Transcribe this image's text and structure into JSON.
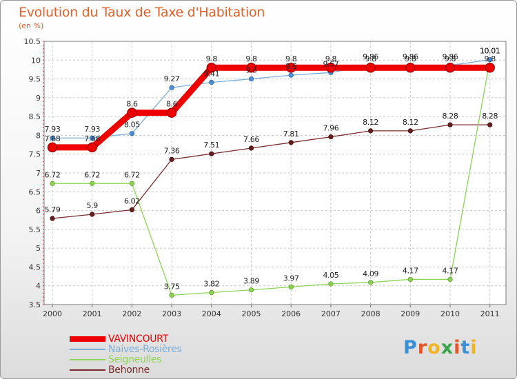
{
  "title": "Evolution du Taux de Taxe d'Habitation",
  "subtitle": "(en %)",
  "logo": {
    "text": "Proxiti",
    "colors": [
      "#3a8fd8",
      "#e2572b",
      "#f0b428",
      "#3aa64a",
      "#e2572b",
      "#3a8fd8",
      "#f0b428"
    ]
  },
  "chart_data": {
    "type": "line",
    "x": [
      "2000",
      "2001",
      "2002",
      "2003",
      "2004",
      "2005",
      "2006",
      "2007",
      "2008",
      "2009",
      "2010",
      "2011"
    ],
    "yticks": [
      "3.5",
      "4",
      "4.5",
      "5",
      "5.5",
      "6",
      "6.5",
      "7",
      "7.5",
      "8",
      "8.5",
      "9",
      "9.5",
      "10",
      "10.5"
    ],
    "ylim": [
      3.5,
      10.5
    ],
    "grid": true,
    "legend_position": "bottom-left",
    "series": [
      {
        "name": "VAVINCOURT",
        "color": "#ee0000",
        "values": [
          7.68,
          7.68,
          8.6,
          8.6,
          9.8,
          9.8,
          9.8,
          9.8,
          9.8,
          9.8,
          9.8,
          9.8
        ],
        "labels": [
          "7.68",
          "7.68",
          "8.6",
          "8.6",
          "9.8",
          "9.8",
          "9.8",
          "9.8",
          "9.8",
          "9.8",
          "9.8",
          "9.8"
        ]
      },
      {
        "name": "Naives-Rosières",
        "color": "#7aaed8",
        "values": [
          7.93,
          7.93,
          8.05,
          9.27,
          9.41,
          9.5,
          9.6,
          9.67,
          9.86,
          9.86,
          9.86,
          10.01
        ],
        "labels": [
          "7.93",
          "7.93",
          "8.05",
          "9.27",
          "9.41",
          "9.5",
          "9.6",
          "9.67",
          "9.86",
          "9.86",
          "9.86",
          "10.01"
        ]
      },
      {
        "name": "Seigneulles",
        "color": "#8ed454",
        "values": [
          6.72,
          6.72,
          6.72,
          3.75,
          3.82,
          3.89,
          3.97,
          4.05,
          4.09,
          4.17,
          4.17,
          10.01
        ],
        "labels": [
          "6.72",
          "6.72",
          "6.72",
          "3.75",
          "3.82",
          "3.89",
          "3.97",
          "4.05",
          "4.09",
          "4.17",
          "4.17",
          "10.01"
        ]
      },
      {
        "name": "Behonne",
        "color": "#7a2a2a",
        "values": [
          5.79,
          5.9,
          6.02,
          7.36,
          7.51,
          7.66,
          7.81,
          7.96,
          8.12,
          8.12,
          8.28,
          8.28
        ],
        "labels": [
          "5.79",
          "5.9",
          "6.02",
          "7.36",
          "7.51",
          "7.66",
          "7.81",
          "7.96",
          "8.12",
          "8.12",
          "8.28",
          "8.28"
        ]
      }
    ]
  }
}
